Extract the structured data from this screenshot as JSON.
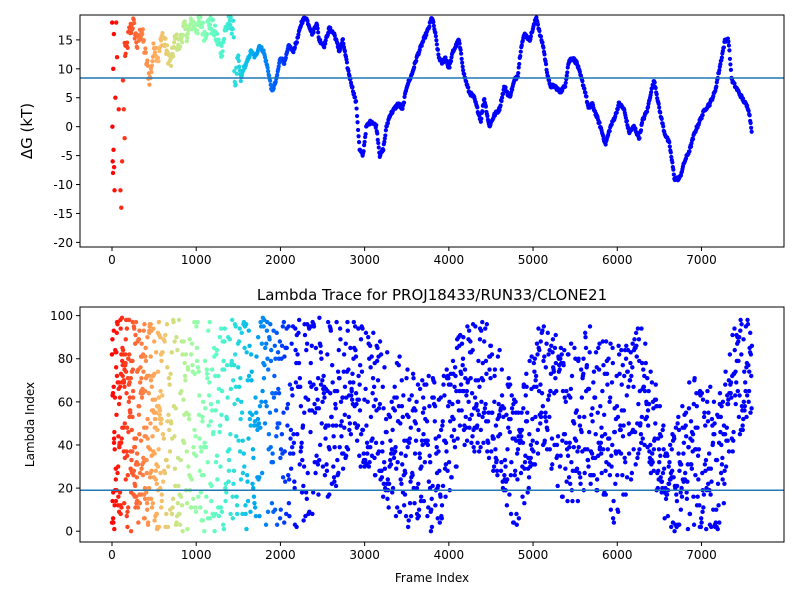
{
  "chart_data": [
    {
      "type": "scatter",
      "title": "",
      "xlabel": "",
      "ylabel": "ΔG (kT)",
      "xlim": [
        -380,
        7980
      ],
      "ylim": [
        -20.8,
        19.3
      ],
      "xticks": [
        0,
        1000,
        2000,
        3000,
        4000,
        5000,
        6000,
        7000
      ],
      "yticks": [
        -20,
        -15,
        -10,
        -5,
        0,
        5,
        10,
        15
      ],
      "hline": 8.4,
      "hline_color": "#1f77b4",
      "colormap": "rainbow (red at early frames → purple at late frames)",
      "grid": false,
      "legend": "none",
      "n_points": 7600,
      "trace_keypoints": {
        "x": [
          0,
          30,
          60,
          100,
          130,
          160,
          200,
          250,
          300,
          350,
          400,
          450,
          500,
          550,
          600,
          650,
          700,
          750,
          800,
          850,
          900,
          950,
          1000,
          1050,
          1100,
          1150,
          1200,
          1250,
          1300,
          1350,
          1400,
          1440,
          1460,
          1500,
          1530,
          1560,
          1600,
          1650,
          1700,
          1750,
          1800,
          1850,
          1900,
          1950,
          2000,
          2050,
          2100,
          2150,
          2200,
          2250,
          2300,
          2380,
          2430,
          2460,
          2520,
          2580,
          2640,
          2700,
          2740,
          2800,
          2850,
          2900,
          2940,
          2980,
          3020,
          3080,
          3140,
          3180,
          3220,
          3260,
          3300,
          3350,
          3400,
          3450,
          3500,
          3560,
          3620,
          3700,
          3760,
          3800,
          3840,
          3880,
          3920,
          3960,
          4000,
          4050,
          4120,
          4180,
          4240,
          4300,
          4340,
          4380,
          4420,
          4480,
          4540,
          4600,
          4660,
          4720,
          4780,
          4820,
          4860,
          4900,
          4960,
          5000,
          5040,
          5080,
          5120,
          5160,
          5200,
          5260,
          5320,
          5380,
          5420,
          5460,
          5520,
          5580,
          5620,
          5660,
          5700,
          5750,
          5800,
          5860,
          5920,
          5980,
          6020,
          6080,
          6140,
          6200,
          6260,
          6300,
          6360,
          6400,
          6440,
          6500,
          6560,
          6620,
          6680,
          6740,
          6800,
          6860,
          6920,
          6980,
          7040,
          7100,
          7160,
          7200,
          7240,
          7280,
          7320,
          7360,
          7400,
          7440,
          7480,
          7520,
          7560,
          7600
        ],
        "y": [
          -2,
          10,
          0,
          15,
          18,
          12,
          16,
          18,
          14,
          17,
          12,
          8,
          14,
          12,
          16,
          13,
          11,
          15,
          14,
          17,
          16,
          18,
          17,
          18,
          16,
          18,
          17,
          15,
          13,
          17,
          18,
          17,
          7,
          12,
          8,
          10,
          11,
          13,
          12,
          14,
          13,
          10,
          6,
          8,
          12,
          11,
          14,
          13,
          15,
          18,
          19,
          16,
          18,
          15,
          14,
          17,
          16,
          13,
          15,
          10,
          7,
          4,
          -4,
          -5,
          0,
          1,
          0,
          -5,
          -4,
          0,
          2,
          3,
          4,
          3,
          7,
          9,
          12,
          15,
          17,
          19,
          16,
          12,
          11,
          12,
          10,
          13,
          15,
          9,
          6,
          5,
          3,
          1,
          5,
          0,
          2,
          3,
          7,
          5,
          8,
          9,
          14,
          16,
          15,
          17,
          19,
          16,
          14,
          10,
          7,
          7,
          6,
          7,
          11,
          12,
          11,
          8,
          6,
          3,
          4,
          2,
          0,
          -3,
          0,
          2,
          4,
          3,
          -1,
          0,
          -2,
          1,
          3,
          6,
          8,
          3,
          -1,
          -3,
          -9,
          -9,
          -6,
          -4,
          -1,
          1,
          3,
          4,
          6,
          9,
          12,
          15,
          15,
          8,
          7,
          6,
          5,
          4,
          3,
          -1
        ]
      },
      "early_scatter": {
        "x": [
          2,
          5,
          8,
          12,
          15,
          18,
          22,
          25,
          30,
          40,
          50,
          60,
          80,
          100,
          110,
          120,
          130,
          140,
          150,
          160
        ],
        "y": [
          18,
          0,
          -6,
          -8,
          10,
          -4,
          16,
          -7,
          -11,
          5,
          18,
          12,
          3,
          -11,
          -14,
          -6,
          8,
          3,
          -2,
          14
        ]
      }
    },
    {
      "type": "scatter",
      "title": "Lambda Trace for PROJ18433/RUN33/CLONE21",
      "xlabel": "Frame Index",
      "ylabel": "Lambda Index",
      "xlim": [
        -380,
        7980
      ],
      "ylim": [
        -5,
        104
      ],
      "xticks": [
        0,
        1000,
        2000,
        3000,
        4000,
        5000,
        6000,
        7000
      ],
      "yticks": [
        0,
        20,
        40,
        60,
        80,
        100
      ],
      "hline": 19,
      "hline_color": "#1f77b4",
      "colormap": "rainbow (red at early frames → purple at late frames)",
      "grid": false,
      "legend": "none",
      "n_points": 7600,
      "lambda_range": [
        0,
        99
      ],
      "band_keypoints": {
        "x": [
          0,
          800,
          1500,
          2200,
          2700,
          3000,
          3300,
          3600,
          3900,
          4200,
          4500,
          4800,
          5100,
          5400,
          5700,
          6000,
          6300,
          6600,
          6900,
          7200,
          7400,
          7600
        ],
        "low": [
          0,
          0,
          0,
          0,
          20,
          30,
          5,
          0,
          0,
          40,
          30,
          0,
          40,
          10,
          20,
          0,
          40,
          0,
          0,
          0,
          40,
          55
        ],
        "high": [
          99,
          99,
          99,
          99,
          99,
          99,
          85,
          75,
          70,
          99,
          99,
          60,
          99,
          85,
          99,
          85,
          99,
          40,
          75,
          65,
          99,
          99
        ]
      }
    }
  ]
}
